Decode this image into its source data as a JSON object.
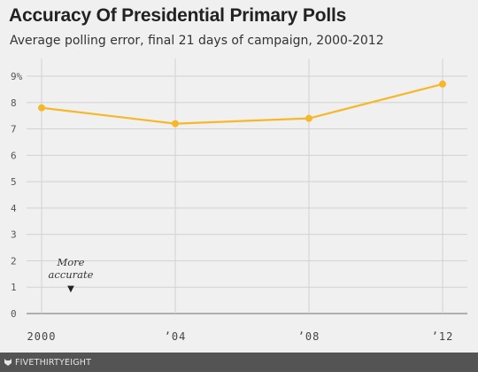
{
  "chart_data": {
    "type": "line",
    "title": "Accuracy Of Presidential Primary Polls",
    "subtitle": "Average polling error, final 21 days of campaign, 2000-2012",
    "x": [
      2000,
      2004,
      2008,
      2012
    ],
    "x_tick_labels": [
      "2000",
      "ʼ04",
      "ʼ08",
      "ʼ12"
    ],
    "y_tick_labels": [
      "0",
      "1",
      "2",
      "3",
      "4",
      "5",
      "6",
      "7",
      "8",
      "9%"
    ],
    "ylim": [
      0,
      9
    ],
    "grid": true,
    "series": [
      {
        "values": [
          7.8,
          7.2,
          7.4,
          8.7
        ],
        "color": "#f6b829"
      }
    ],
    "annotation": {
      "line1": "More",
      "line2": "accurate",
      "arrow": "▼"
    }
  },
  "footer": {
    "logo_icon": "fivethirtyeight-fox-icon",
    "text": "FIVETHIRTYEIGHT"
  }
}
